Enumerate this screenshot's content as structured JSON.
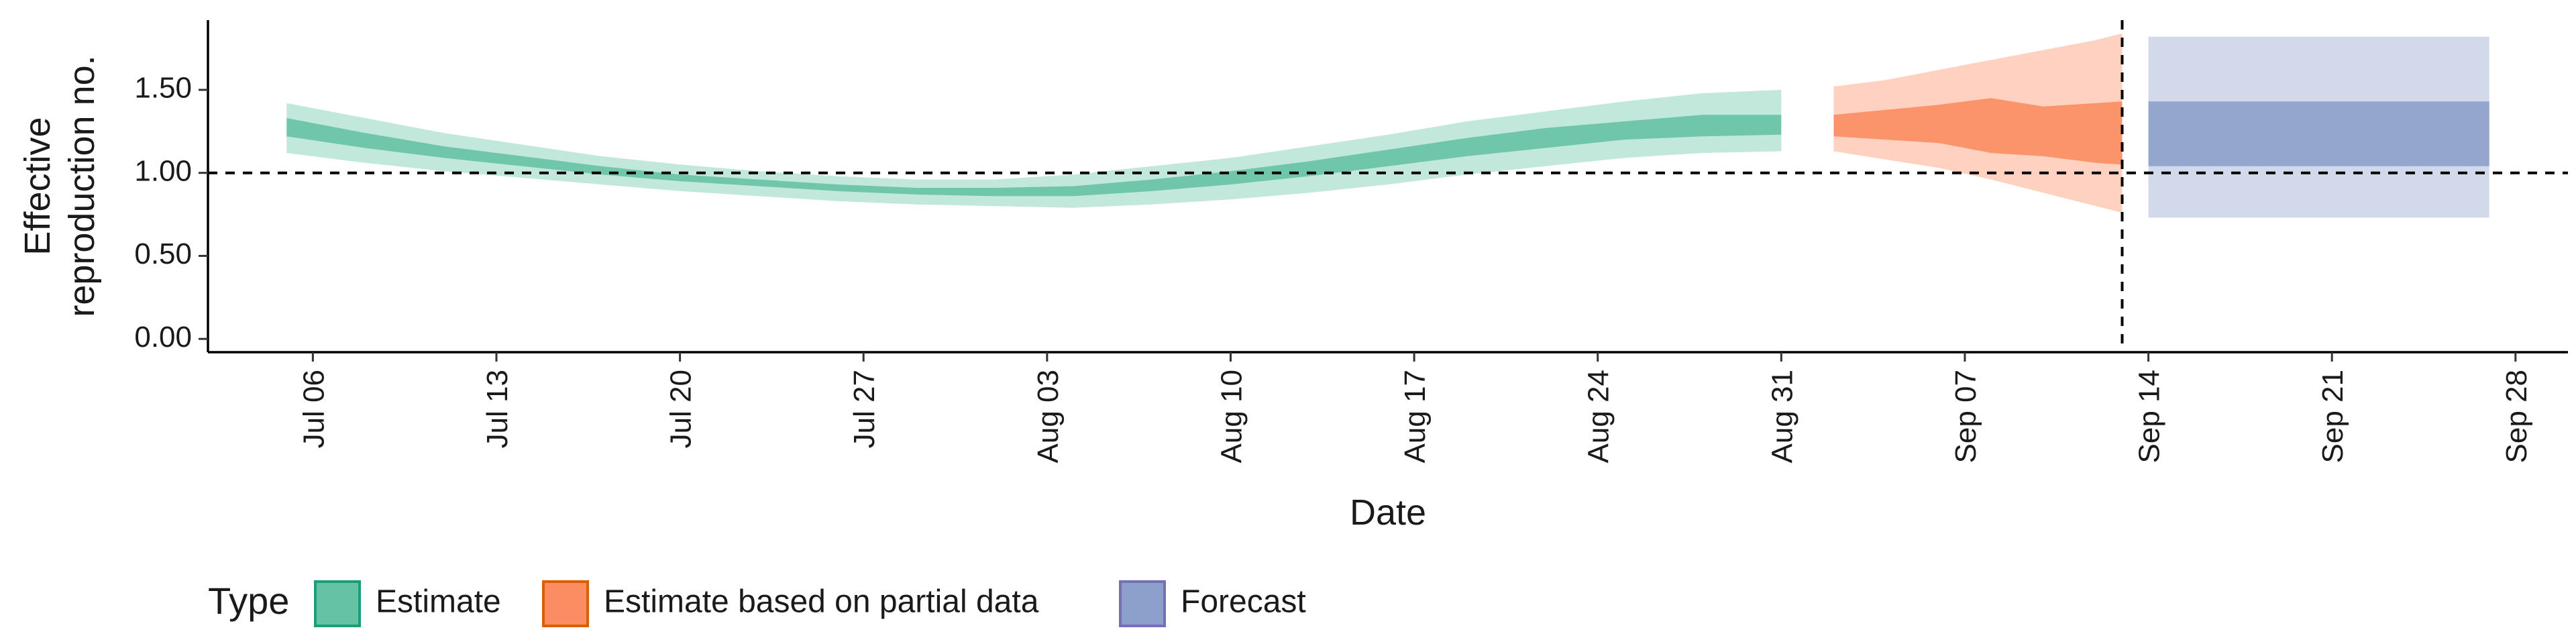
{
  "chart_data": {
    "type": "area",
    "xlabel": "Date",
    "ylabel_lines": [
      "Effective",
      "reproduction no."
    ],
    "x_range": [
      "2020-07-02",
      "2020-09-30"
    ],
    "x_ticks": [
      {
        "date": "2020-07-06",
        "label": "Jul 06"
      },
      {
        "date": "2020-07-13",
        "label": "Jul 13"
      },
      {
        "date": "2020-07-20",
        "label": "Jul 20"
      },
      {
        "date": "2020-07-27",
        "label": "Jul 27"
      },
      {
        "date": "2020-08-03",
        "label": "Aug 03"
      },
      {
        "date": "2020-08-10",
        "label": "Aug 10"
      },
      {
        "date": "2020-08-17",
        "label": "Aug 17"
      },
      {
        "date": "2020-08-24",
        "label": "Aug 24"
      },
      {
        "date": "2020-08-31",
        "label": "Aug 31"
      },
      {
        "date": "2020-09-07",
        "label": "Sep 07"
      },
      {
        "date": "2020-09-14",
        "label": "Sep 14"
      },
      {
        "date": "2020-09-21",
        "label": "Sep 21"
      },
      {
        "date": "2020-09-28",
        "label": "Sep 28"
      }
    ],
    "ylim": [
      -0.08,
      1.92
    ],
    "y_ticks": [
      {
        "value": 0.0,
        "label": "0.00"
      },
      {
        "value": 0.5,
        "label": "0.50"
      },
      {
        "value": 1.0,
        "label": "1.00"
      },
      {
        "value": 1.5,
        "label": "1.50"
      }
    ],
    "reference_hline": 1.0,
    "reference_vline_date": "2020-09-13",
    "grid": false,
    "legend": {
      "title": "Type",
      "position": "bottom-left",
      "entries": [
        {
          "label": "Estimate",
          "fill": "#66c2a5",
          "stroke": "#1b9e77"
        },
        {
          "label": "Estimate based on partial data",
          "fill": "#fc8d62",
          "stroke": "#d95f02"
        },
        {
          "label": "Forecast",
          "fill": "#8da0cb",
          "stroke": "#7570b3"
        }
      ]
    },
    "series": [
      {
        "type": "Estimate",
        "color": "#66c2a5",
        "x": [
          "2020-07-05",
          "2020-07-08",
          "2020-07-11",
          "2020-07-14",
          "2020-07-17",
          "2020-07-20",
          "2020-07-23",
          "2020-07-26",
          "2020-07-29",
          "2020-08-01",
          "2020-08-04",
          "2020-08-07",
          "2020-08-10",
          "2020-08-13",
          "2020-08-16",
          "2020-08-19",
          "2020-08-22",
          "2020-08-25",
          "2020-08-28",
          "2020-08-31"
        ],
        "lower90": [
          1.12,
          1.06,
          1.01,
          0.97,
          0.93,
          0.89,
          0.86,
          0.83,
          0.81,
          0.8,
          0.79,
          0.81,
          0.84,
          0.88,
          0.93,
          0.99,
          1.04,
          1.09,
          1.12,
          1.13
        ],
        "lower50": [
          1.22,
          1.15,
          1.09,
          1.04,
          0.99,
          0.95,
          0.92,
          0.89,
          0.87,
          0.86,
          0.86,
          0.89,
          0.93,
          0.98,
          1.04,
          1.1,
          1.15,
          1.2,
          1.22,
          1.23
        ],
        "upper50": [
          1.33,
          1.24,
          1.16,
          1.1,
          1.04,
          0.99,
          0.96,
          0.93,
          0.91,
          0.91,
          0.92,
          0.96,
          1.01,
          1.07,
          1.14,
          1.21,
          1.27,
          1.31,
          1.35,
          1.35
        ],
        "upper90": [
          1.42,
          1.33,
          1.24,
          1.17,
          1.1,
          1.05,
          1.01,
          0.98,
          0.96,
          0.96,
          0.99,
          1.04,
          1.09,
          1.16,
          1.23,
          1.31,
          1.37,
          1.43,
          1.48,
          1.5
        ]
      },
      {
        "type": "Estimate based on partial data",
        "color": "#fc8d62",
        "x": [
          "2020-09-02",
          "2020-09-04",
          "2020-09-06",
          "2020-09-08",
          "2020-09-10",
          "2020-09-12",
          "2020-09-13"
        ],
        "lower90": [
          1.13,
          1.08,
          1.03,
          0.96,
          0.88,
          0.8,
          0.76
        ],
        "lower50": [
          1.22,
          1.2,
          1.18,
          1.12,
          1.1,
          1.06,
          1.05
        ],
        "upper50": [
          1.35,
          1.38,
          1.41,
          1.45,
          1.4,
          1.42,
          1.43
        ],
        "upper90": [
          1.52,
          1.56,
          1.62,
          1.68,
          1.74,
          1.8,
          1.84
        ]
      },
      {
        "type": "Forecast",
        "color": "#8da0cb",
        "x": [
          "2020-09-14",
          "2020-09-27"
        ],
        "lower90": [
          0.73,
          0.73
        ],
        "lower50": [
          1.04,
          1.04
        ],
        "upper50": [
          1.43,
          1.43
        ],
        "upper90": [
          1.82,
          1.82
        ]
      }
    ]
  }
}
